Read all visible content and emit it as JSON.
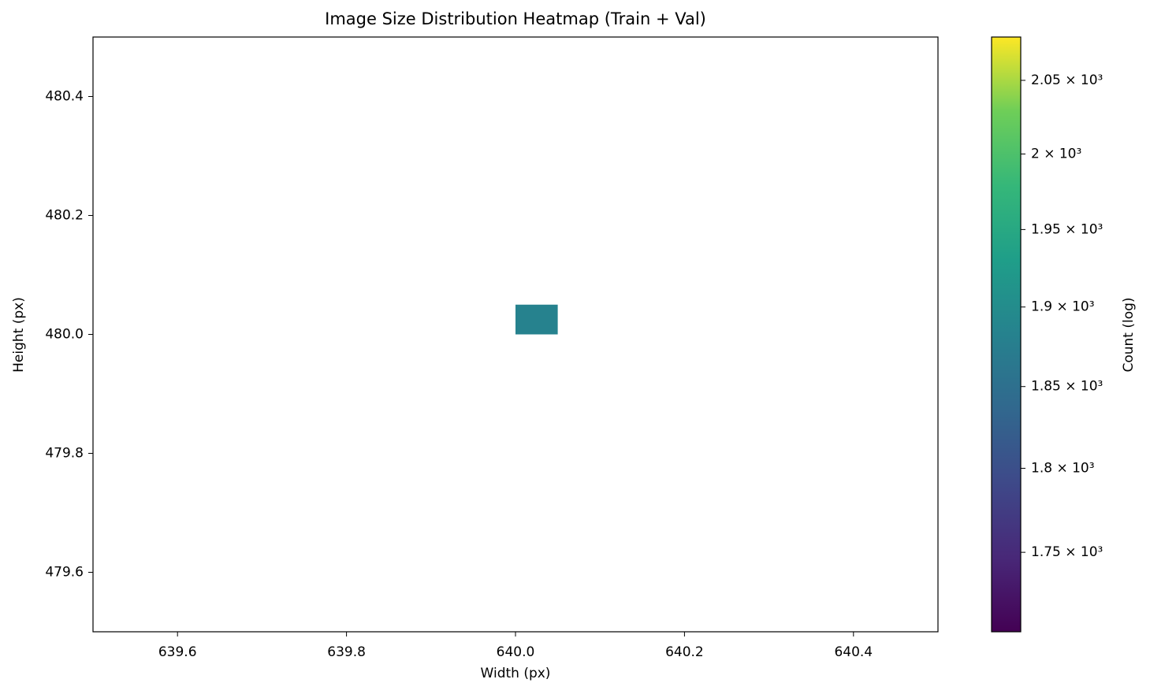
{
  "chart_data": {
    "type": "heatmap",
    "title": "Image Size Distribution Heatmap (Train + Val)",
    "xlabel": "Width (px)",
    "ylabel": "Height (px)",
    "colorbar_label": "Count (log)",
    "x_bins": [
      640,
      640.05
    ],
    "y_bins": [
      480,
      480.05
    ],
    "values": [
      [
        1883
      ]
    ],
    "xlim": [
      639.5,
      640.5
    ],
    "xticks": [
      639.6,
      639.8,
      {
        "value": 640,
        "label": "640.0"
      },
      640.2,
      640.4
    ],
    "ylim": [
      479.5,
      480.5
    ],
    "yticks": [
      479.6,
      479.8,
      {
        "value": 480,
        "label": "480.0"
      },
      480.2,
      480.4
    ],
    "colormap": "viridis",
    "color_scale": "log",
    "clim": [
      1704,
      2080
    ],
    "cticks": [
      {
        "value": 1750,
        "label": "1.75 × 10³"
      },
      {
        "value": 1800,
        "label": "1.8 × 10³"
      },
      {
        "value": 1850,
        "label": "1.85 × 10³"
      },
      {
        "value": 1900,
        "label": "1.9 × 10³"
      },
      {
        "value": 1950,
        "label": "1.95 × 10³"
      },
      {
        "value": 2000,
        "label": "2 × 10³"
      },
      {
        "value": 2050,
        "label": "2.05 × 10³"
      }
    ]
  }
}
